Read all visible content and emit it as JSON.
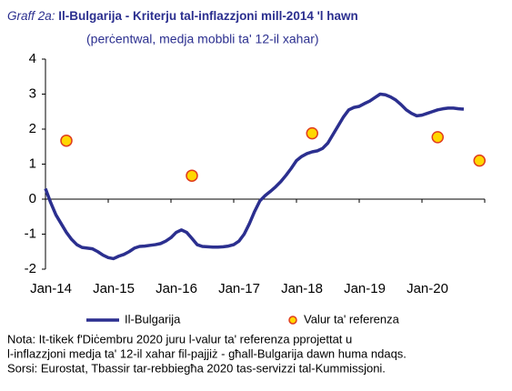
{
  "chart_data": {
    "type": "line",
    "label": "Graff 2a:",
    "title": "Il-Bulgarija - Kriterju tal-inflazzjoni mill-2014 'l hawn",
    "subtitle": "(perċentwal, medja mobbli ta' 12-il xahar)",
    "categories": [
      "Jan-14",
      null,
      null,
      null,
      null,
      null,
      null,
      null,
      null,
      null,
      null,
      null,
      "Jan-15",
      null,
      null,
      null,
      null,
      null,
      null,
      null,
      null,
      null,
      null,
      null,
      "Jan-16",
      null,
      null,
      null,
      null,
      null,
      null,
      null,
      null,
      null,
      null,
      null,
      "Jan-17",
      null,
      null,
      null,
      null,
      null,
      null,
      null,
      null,
      null,
      null,
      null,
      "Jan-18",
      null,
      null,
      null,
      null,
      null,
      null,
      null,
      null,
      null,
      null,
      null,
      "Jan-19",
      null,
      null,
      null,
      null,
      null,
      null,
      null,
      null,
      null,
      null,
      null,
      "Jan-20",
      null,
      null,
      null,
      null,
      null,
      null,
      null,
      null,
      null,
      null,
      null
    ],
    "series": [
      {
        "name": "Il-Bulgarija",
        "color": "#2b2f8f",
        "style": "line",
        "values": [
          0.3,
          -0.1,
          -0.45,
          -0.7,
          -0.95,
          -1.15,
          -1.3,
          -1.38,
          -1.4,
          -1.42,
          -1.5,
          -1.6,
          -1.67,
          -1.7,
          -1.63,
          -1.58,
          -1.5,
          -1.4,
          -1.35,
          -1.34,
          -1.32,
          -1.3,
          -1.27,
          -1.2,
          -1.1,
          -0.95,
          -0.88,
          -0.95,
          -1.12,
          -1.3,
          -1.35,
          -1.36,
          -1.37,
          -1.37,
          -1.36,
          -1.34,
          -1.3,
          -1.2,
          -1.0,
          -0.7,
          -0.35,
          -0.05,
          0.1,
          0.22,
          0.35,
          0.5,
          0.68,
          0.88,
          1.1,
          1.22,
          1.3,
          1.35,
          1.38,
          1.45,
          1.6,
          1.85,
          2.1,
          2.35,
          2.55,
          2.62,
          2.65,
          2.73,
          2.8,
          2.9,
          3.0,
          2.98,
          2.92,
          2.83,
          2.7,
          2.55,
          2.45,
          2.38,
          2.4,
          2.45,
          2.5,
          2.55,
          2.58,
          2.6,
          2.6,
          2.58,
          2.57,
          null,
          null,
          null
        ]
      },
      {
        "name": "Valur ta' referenza",
        "color": "#ffd700",
        "edgecolor": "#e03c1e",
        "style": "marker",
        "values": [
          null,
          null,
          null,
          null,
          1.67,
          null,
          null,
          null,
          null,
          null,
          null,
          null,
          null,
          null,
          null,
          null,
          null,
          null,
          null,
          null,
          null,
          null,
          null,
          null,
          null,
          null,
          null,
          null,
          0.67,
          null,
          null,
          null,
          null,
          null,
          null,
          null,
          null,
          null,
          null,
          null,
          null,
          null,
          null,
          null,
          null,
          null,
          null,
          null,
          null,
          null,
          null,
          1.88,
          null,
          null,
          null,
          null,
          null,
          null,
          null,
          null,
          null,
          null,
          null,
          null,
          null,
          null,
          null,
          null,
          null,
          null,
          null,
          null,
          null,
          null,
          null,
          1.77,
          null,
          null,
          null,
          null,
          null,
          null,
          null,
          1.1
        ]
      }
    ],
    "ylim": [
      -2,
      4
    ],
    "yticks": [
      -2,
      -1,
      0,
      1,
      2,
      3,
      4
    ],
    "legend": "bottom",
    "notes": [
      "Nota: It-tikek f'Diċembru 2020 juru l-valur ta' referenza pprojettat u",
      "l-inflazzjoni medja ta' 12-il xahar fil-pajjiż - għall-Bulgarija dawn huma ndaqs.",
      "Sorsi: Eurostat, Tbassir tar-rebbiegħa 2020 tas-servizzi tal-Kummissjoni."
    ]
  }
}
